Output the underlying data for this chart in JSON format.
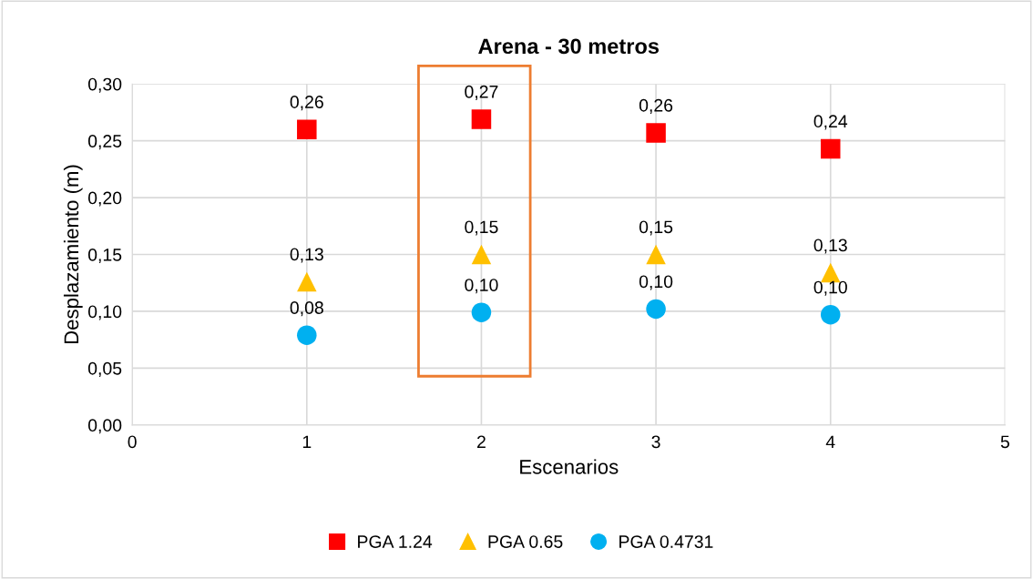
{
  "chart_data": {
    "type": "scatter",
    "title": "Arena - 30 metros",
    "xlabel": "Escenarios",
    "ylabel": "Desplazamiento (m)",
    "x": [
      1,
      2,
      3,
      4
    ],
    "series": [
      {
        "name": "PGA 1.24",
        "color": "#ff0000",
        "marker": "square",
        "values": [
          0.26,
          0.269,
          0.257,
          0.243
        ],
        "value_labels": [
          "0,26",
          "0,27",
          "0,26",
          "0,24"
        ]
      },
      {
        "name": "PGA 0.65",
        "color": "#ffc000",
        "marker": "triangle",
        "values": [
          0.126,
          0.15,
          0.15,
          0.134
        ],
        "value_labels": [
          "0,13",
          "0,15",
          "0,15",
          "0,13"
        ]
      },
      {
        "name": "PGA 0.4731",
        "color": "#00b0f0",
        "marker": "circle",
        "values": [
          0.079,
          0.099,
          0.102,
          0.097
        ],
        "value_labels": [
          "0,08",
          "0,10",
          "0,10",
          "0,10"
        ]
      }
    ],
    "xlim": [
      0,
      5
    ],
    "xticks": [
      0,
      1,
      2,
      3,
      4,
      5
    ],
    "ylim": [
      0,
      0.3
    ],
    "yticks": [
      {
        "value": 0,
        "label": "0,00"
      },
      {
        "value": 0.05,
        "label": "0,05"
      },
      {
        "value": 0.1,
        "label": "0,10"
      },
      {
        "value": 0.15,
        "label": "0,15"
      },
      {
        "value": 0.2,
        "label": "0,20"
      },
      {
        "value": 0.25,
        "label": "0,25"
      },
      {
        "value": 0.3,
        "label": "0,30"
      }
    ],
    "grid": true,
    "legend": "bottom"
  }
}
